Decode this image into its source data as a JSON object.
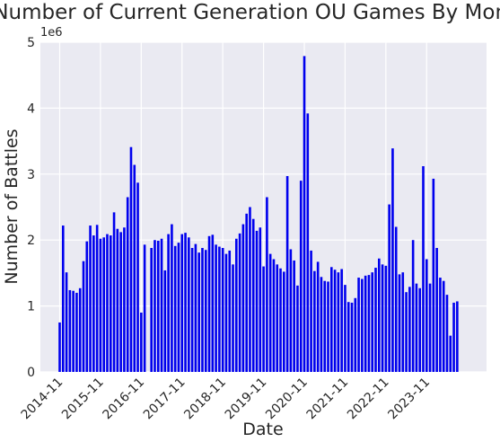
{
  "chart_data": {
    "type": "bar",
    "title": "Number of Current Generation OU Games By Month",
    "xlabel": "Date",
    "ylabel": "Number of Battles",
    "y_offset_label": "1e6",
    "ylim": [
      0,
      5
    ],
    "y_ticks": [
      0,
      1,
      2,
      3,
      4,
      5
    ],
    "y_tick_labels": [
      "0",
      "1",
      "2",
      "3",
      "4",
      "5"
    ],
    "x_tick_labels": [
      "2014-11",
      "2015-11",
      "2016-11",
      "2017-11",
      "2018-11",
      "2019-11",
      "2020-11",
      "2021-11",
      "2022-11",
      "2023-11"
    ],
    "grid": true,
    "bar_color": "#0000ee",
    "plot_background": "#eaeaf2",
    "grid_color": "#ffffff",
    "y_unit": "millions of battles",
    "series": [
      {
        "values": [
          0.75,
          2.22,
          1.51,
          1.24,
          1.23,
          1.2,
          1.27,
          1.68,
          1.98,
          2.22,
          2.07,
          2.23,
          2.02,
          2.04,
          2.09,
          2.07,
          2.42,
          2.17,
          2.12,
          2.19,
          2.65,
          3.41,
          3.14,
          2.87,
          0.9,
          1.93,
          0,
          1.88,
          2.0,
          1.99,
          2.02,
          1.54,
          2.09,
          2.24,
          1.91,
          1.96,
          2.09,
          2.11,
          2.04,
          1.88,
          1.94,
          1.81,
          1.88,
          1.85,
          2.06,
          2.08,
          1.93,
          1.9,
          1.88,
          1.79,
          1.84,
          1.63,
          2.02,
          2.1,
          2.24,
          2.4,
          2.5,
          2.32,
          2.14,
          2.19,
          1.6,
          2.65,
          1.79,
          1.71,
          1.63,
          1.57,
          1.52,
          2.97,
          1.86,
          1.69,
          1.31,
          2.9,
          4.79,
          3.92,
          1.84,
          1.53,
          1.67,
          1.44,
          1.38,
          1.37,
          1.59,
          1.55,
          1.51,
          1.56,
          1.32,
          1.06,
          1.05,
          1.12,
          1.43,
          1.41,
          1.46,
          1.47,
          1.51,
          1.58,
          1.72,
          1.63,
          1.61,
          2.54,
          3.39,
          2.2,
          1.48,
          1.51,
          1.21,
          1.29,
          2.0,
          1.34,
          1.27,
          3.12,
          1.71,
          1.34,
          2.93,
          1.88,
          1.43,
          1.38,
          1.17,
          0.55,
          1.05,
          1.07
        ]
      }
    ]
  }
}
